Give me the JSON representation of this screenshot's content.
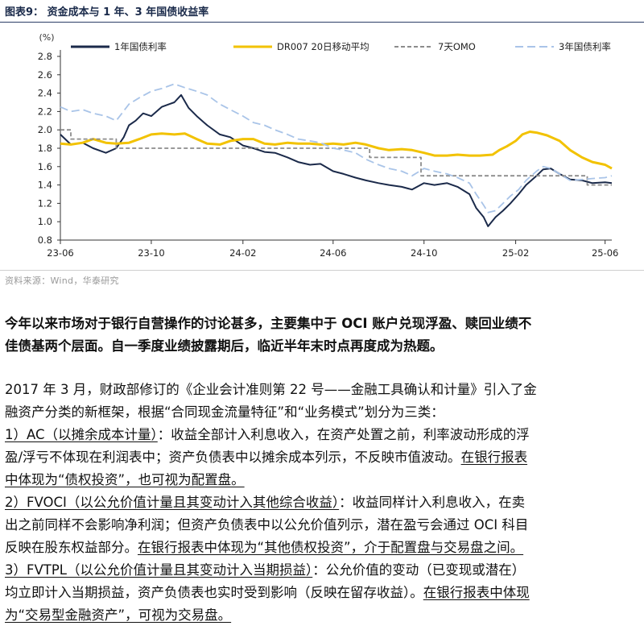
{
  "figure": {
    "title": "图表9：   资金成本与 1 年、3 年国债收益率",
    "unit": "(%)",
    "source": "资料来源：Wind，华泰研究"
  },
  "chart_data": {
    "type": "line",
    "ylim": [
      0.8,
      2.8
    ],
    "yticks": [
      "2.8",
      "2.6",
      "2.4",
      "2.2",
      "2.0",
      "1.8",
      "1.6",
      "1.4",
      "1.2",
      "1.0",
      "0.8"
    ],
    "xticks": [
      "23-06",
      "23-10",
      "24-02",
      "24-06",
      "24-10",
      "25-02",
      "25-06"
    ],
    "legend_position": "top",
    "series": [
      {
        "name": "1年国债利率",
        "color": "#1b2a4a",
        "dash": "solid",
        "points": [
          [
            "2023-06-01",
            1.95
          ],
          [
            "2023-06-15",
            1.84
          ],
          [
            "2023-07-01",
            1.86
          ],
          [
            "2023-07-15",
            1.8
          ],
          [
            "2023-08-01",
            1.75
          ],
          [
            "2023-08-15",
            1.8
          ],
          [
            "2023-08-25",
            1.92
          ],
          [
            "2023-09-01",
            2.05
          ],
          [
            "2023-09-10",
            2.1
          ],
          [
            "2023-09-20",
            2.18
          ],
          [
            "2023-10-01",
            2.15
          ],
          [
            "2023-10-15",
            2.25
          ],
          [
            "2023-10-25",
            2.28
          ],
          [
            "2023-11-01",
            2.3
          ],
          [
            "2023-11-10",
            2.38
          ],
          [
            "2023-11-20",
            2.24
          ],
          [
            "2023-12-01",
            2.15
          ],
          [
            "2023-12-15",
            2.05
          ],
          [
            "2024-01-01",
            1.95
          ],
          [
            "2024-01-15",
            1.92
          ],
          [
            "2024-02-01",
            1.83
          ],
          [
            "2024-02-15",
            1.8
          ],
          [
            "2024-03-01",
            1.76
          ],
          [
            "2024-03-15",
            1.75
          ],
          [
            "2024-04-01",
            1.7
          ],
          [
            "2024-04-15",
            1.65
          ],
          [
            "2024-05-01",
            1.62
          ],
          [
            "2024-05-15",
            1.63
          ],
          [
            "2024-06-01",
            1.55
          ],
          [
            "2024-06-15",
            1.52
          ],
          [
            "2024-07-01",
            1.48
          ],
          [
            "2024-07-15",
            1.45
          ],
          [
            "2024-08-01",
            1.42
          ],
          [
            "2024-08-15",
            1.4
          ],
          [
            "2024-09-01",
            1.38
          ],
          [
            "2024-09-15",
            1.35
          ],
          [
            "2024-10-01",
            1.42
          ],
          [
            "2024-10-15",
            1.4
          ],
          [
            "2024-11-01",
            1.42
          ],
          [
            "2024-11-15",
            1.38
          ],
          [
            "2024-12-01",
            1.3
          ],
          [
            "2024-12-10",
            1.15
          ],
          [
            "2024-12-20",
            1.05
          ],
          [
            "2024-12-26",
            0.95
          ],
          [
            "2025-01-05",
            1.05
          ],
          [
            "2025-01-15",
            1.12
          ],
          [
            "2025-01-25",
            1.2
          ],
          [
            "2025-02-05",
            1.3
          ],
          [
            "2025-02-15",
            1.4
          ],
          [
            "2025-03-01",
            1.5
          ],
          [
            "2025-03-10",
            1.57
          ],
          [
            "2025-03-20",
            1.58
          ],
          [
            "2025-04-01",
            1.52
          ],
          [
            "2025-04-15",
            1.46
          ],
          [
            "2025-05-01",
            1.45
          ],
          [
            "2025-05-15",
            1.42
          ],
          [
            "2025-06-01",
            1.43
          ],
          [
            "2025-06-10",
            1.42
          ]
        ]
      },
      {
        "name": "DR007 20日移动平均",
        "color": "#f2c200",
        "dash": "solid",
        "points": [
          [
            "2023-06-01",
            1.85
          ],
          [
            "2023-06-15",
            1.84
          ],
          [
            "2023-07-01",
            1.86
          ],
          [
            "2023-07-15",
            1.9
          ],
          [
            "2023-08-01",
            1.86
          ],
          [
            "2023-08-15",
            1.85
          ],
          [
            "2023-09-01",
            1.86
          ],
          [
            "2023-09-15",
            1.9
          ],
          [
            "2023-10-01",
            1.95
          ],
          [
            "2023-10-15",
            1.96
          ],
          [
            "2023-11-01",
            1.95
          ],
          [
            "2023-11-15",
            1.96
          ],
          [
            "2023-12-01",
            1.9
          ],
          [
            "2023-12-15",
            1.85
          ],
          [
            "2024-01-01",
            1.84
          ],
          [
            "2024-01-15",
            1.88
          ],
          [
            "2024-02-01",
            1.9
          ],
          [
            "2024-02-15",
            1.9
          ],
          [
            "2024-03-01",
            1.85
          ],
          [
            "2024-03-15",
            1.84
          ],
          [
            "2024-04-01",
            1.86
          ],
          [
            "2024-04-15",
            1.85
          ],
          [
            "2024-05-01",
            1.85
          ],
          [
            "2024-05-15",
            1.84
          ],
          [
            "2024-06-01",
            1.85
          ],
          [
            "2024-06-15",
            1.84
          ],
          [
            "2024-07-01",
            1.86
          ],
          [
            "2024-07-15",
            1.84
          ],
          [
            "2024-08-01",
            1.8
          ],
          [
            "2024-08-15",
            1.78
          ],
          [
            "2024-09-01",
            1.79
          ],
          [
            "2024-09-15",
            1.78
          ],
          [
            "2024-10-01",
            1.75
          ],
          [
            "2024-10-15",
            1.72
          ],
          [
            "2024-11-01",
            1.72
          ],
          [
            "2024-11-15",
            1.73
          ],
          [
            "2024-12-01",
            1.72
          ],
          [
            "2024-12-15",
            1.72
          ],
          [
            "2025-01-01",
            1.73
          ],
          [
            "2025-01-10",
            1.78
          ],
          [
            "2025-01-20",
            1.82
          ],
          [
            "2025-02-01",
            1.88
          ],
          [
            "2025-02-10",
            1.95
          ],
          [
            "2025-02-20",
            1.98
          ],
          [
            "2025-03-01",
            1.97
          ],
          [
            "2025-03-15",
            1.94
          ],
          [
            "2025-04-01",
            1.88
          ],
          [
            "2025-04-15",
            1.78
          ],
          [
            "2025-05-01",
            1.7
          ],
          [
            "2025-05-15",
            1.65
          ],
          [
            "2025-06-01",
            1.62
          ],
          [
            "2025-06-10",
            1.58
          ]
        ]
      },
      {
        "name": "7天OMO",
        "color": "#8c8c8c",
        "dash": "dash",
        "step": true,
        "points": [
          [
            "2023-06-01",
            2.0
          ],
          [
            "2023-06-15",
            1.9
          ],
          [
            "2023-08-15",
            1.8
          ],
          [
            "2024-07-20",
            1.7
          ],
          [
            "2024-09-27",
            1.5
          ],
          [
            "2025-05-08",
            1.4
          ],
          [
            "2025-06-10",
            1.4
          ]
        ]
      },
      {
        "name": "3年国债利率",
        "color": "#a9c4e8",
        "dash": "longdash",
        "points": [
          [
            "2023-06-01",
            2.25
          ],
          [
            "2023-06-15",
            2.2
          ],
          [
            "2023-07-01",
            2.22
          ],
          [
            "2023-07-15",
            2.18
          ],
          [
            "2023-08-01",
            2.15
          ],
          [
            "2023-08-15",
            2.1
          ],
          [
            "2023-09-01",
            2.28
          ],
          [
            "2023-09-15",
            2.35
          ],
          [
            "2023-10-01",
            2.42
          ],
          [
            "2023-10-15",
            2.45
          ],
          [
            "2023-11-01",
            2.5
          ],
          [
            "2023-11-15",
            2.46
          ],
          [
            "2023-12-01",
            2.42
          ],
          [
            "2023-12-15",
            2.38
          ],
          [
            "2024-01-01",
            2.28
          ],
          [
            "2024-01-15",
            2.22
          ],
          [
            "2024-02-01",
            2.15
          ],
          [
            "2024-02-15",
            2.08
          ],
          [
            "2024-03-01",
            2.05
          ],
          [
            "2024-03-15",
            2.0
          ],
          [
            "2024-04-01",
            1.95
          ],
          [
            "2024-04-15",
            1.9
          ],
          [
            "2024-05-01",
            1.88
          ],
          [
            "2024-05-15",
            1.86
          ],
          [
            "2024-06-01",
            1.8
          ],
          [
            "2024-06-15",
            1.78
          ],
          [
            "2024-07-01",
            1.75
          ],
          [
            "2024-07-15",
            1.68
          ],
          [
            "2024-08-01",
            1.62
          ],
          [
            "2024-08-15",
            1.58
          ],
          [
            "2024-09-01",
            1.55
          ],
          [
            "2024-09-15",
            1.5
          ],
          [
            "2024-10-01",
            1.58
          ],
          [
            "2024-10-15",
            1.55
          ],
          [
            "2024-11-01",
            1.52
          ],
          [
            "2024-11-15",
            1.48
          ],
          [
            "2024-12-01",
            1.42
          ],
          [
            "2024-12-10",
            1.3
          ],
          [
            "2024-12-20",
            1.18
          ],
          [
            "2024-12-26",
            1.1
          ],
          [
            "2025-01-05",
            1.12
          ],
          [
            "2025-01-15",
            1.2
          ],
          [
            "2025-01-25",
            1.28
          ],
          [
            "2025-02-05",
            1.35
          ],
          [
            "2025-02-15",
            1.45
          ],
          [
            "2025-03-01",
            1.55
          ],
          [
            "2025-03-10",
            1.6
          ],
          [
            "2025-03-20",
            1.58
          ],
          [
            "2025-04-01",
            1.52
          ],
          [
            "2025-04-15",
            1.45
          ],
          [
            "2025-05-01",
            1.46
          ],
          [
            "2025-05-15",
            1.47
          ],
          [
            "2025-06-01",
            1.48
          ],
          [
            "2025-06-10",
            1.5
          ]
        ]
      }
    ]
  },
  "text": {
    "lead_1": "今年以来市场对于银行自营操作的讨论甚多，主要集中于 OCI 账户兑现浮盈、赎回业绩不",
    "lead_2": "佳债基两个层面。自一季度业绩披露期后，临近半年末时点再度成为热题。",
    "p1_a": "2017 年 3 月，财政部修订的《企业会计准则第 22 号——金融工具确认和计量》引入了金",
    "p1_b": "融资产分类的新框架，根据“合同现金流量特征”和“业务模式”划分为三类：",
    "ac_u": "1）AC（以摊余成本计量）",
    "ac_1": "：收益全部计入利息收入，在资产处置之前，利率波动形成的浮",
    "ac_2": "盈/浮亏不体现在利润表中；资产负债表中以摊余成本列示，不反映市值波动。",
    "ac_2u": "在银行报表",
    "ac_3u": "中体现为“债权投资”，也可视为配置盘。",
    "fv_u": "2）FVOCI（以公允价值计量且其变动计入其他综合收益）",
    "fv_1": "：收益同样计入利息收入，在卖",
    "fv_2": "出之前同样不会影响净利润；但资产负债表中以公允价值列示，潜在盈亏会通过 OCI 科目",
    "fv_3": "反映在股东权益部分。",
    "fv_3u": "在银行报表中体现为“其他债权投资”，介于配置盘与交易盘之间。",
    "tpl_u": "3）FVTPL（以公允价值计量且其变动计入当期损益）",
    "tpl_1": "：公允价值的变动（已变现或潜在）",
    "tpl_2": "均立即计入当期损益，资产负债表也实时受到影响（反映在留存收益）。",
    "tpl_2u": "在银行报表中体现",
    "tpl_3u": "为“交易型金融资产”，可视为交易盘。"
  }
}
